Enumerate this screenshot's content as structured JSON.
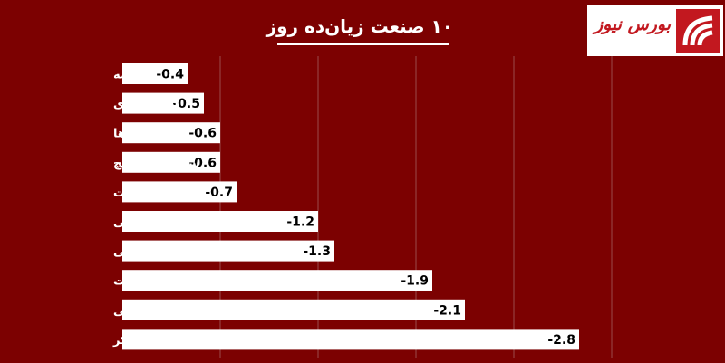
{
  "chart_data": {
    "type": "bar",
    "orientation": "horizontal",
    "title": "۱۰ صنعت زیان‌ده روز",
    "categories": [
      "بیمه",
      "انبوه سازی",
      "بانک ها",
      "سیمان آهک گچ",
      "مخابرات",
      "فنی و مهندسی",
      "پیمانکاری صنعتی",
      "زراعت",
      "محصولات چوبی",
      "قند و شکر"
    ],
    "values": [
      -0.4,
      -0.5,
      -0.6,
      -0.6,
      -0.7,
      -1.2,
      -1.3,
      -1.9,
      -2.1,
      -2.8
    ],
    "value_labels": [
      "-0.4",
      "-0.5",
      "-0.6",
      "-0.6",
      "-0.7",
      "-1.2",
      "-1.3",
      "-1.9",
      "-2.1",
      "-2.8"
    ],
    "xlim": [
      0,
      -3
    ],
    "grid": true,
    "colors": {
      "background": "#7c0101",
      "bar": "#ffffff",
      "gridline": "#9a4a4a",
      "text": "#ffffff",
      "value_text": "#000000"
    }
  },
  "logo": {
    "text": "بورس نیوز",
    "color": "#c2181f"
  }
}
